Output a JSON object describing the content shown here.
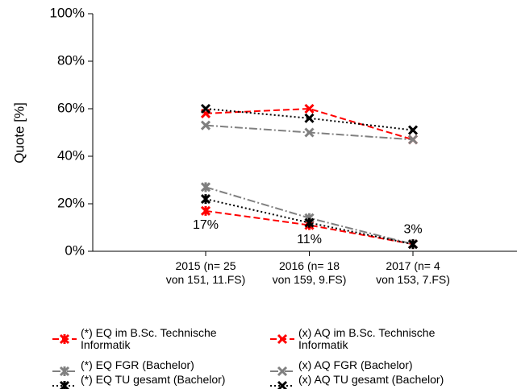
{
  "chart_data": {
    "type": "line",
    "y_label": "Quote [%]",
    "categories": [
      "2015 (n= 25\nvon 151, 11.FS)",
      "2016 (n= 18\nvon 159, 9.FS)",
      "2017 (n= 4\nvon 153, 7.FS)"
    ],
    "ylim": [
      0,
      100
    ],
    "yticks": [
      {
        "value": 0,
        "label": "0%"
      },
      {
        "value": 20,
        "label": "20%"
      },
      {
        "value": 40,
        "label": "40%"
      },
      {
        "value": 60,
        "label": "60%"
      },
      {
        "value": 80,
        "label": "80%"
      },
      {
        "value": 100,
        "label": "100%"
      }
    ],
    "series": [
      {
        "name": "(*) EQ im B.Sc. Technische Informatik",
        "color": "#ff0000",
        "linestyle": "dashed",
        "marker": "star",
        "values": [
          17,
          11,
          3
        ],
        "value_labels": [
          "17%",
          "11%",
          "3%"
        ]
      },
      {
        "name": "(x) AQ im B.Sc. Technische Informatik",
        "color": "#ff0000",
        "linestyle": "dashed",
        "marker": "cross",
        "values": [
          58,
          60,
          47
        ]
      },
      {
        "name": "(*) EQ FGR (Bachelor)",
        "color": "#808080",
        "linestyle": "dashdot",
        "marker": "star",
        "values": [
          27,
          14,
          3
        ]
      },
      {
        "name": "(x) AQ FGR (Bachelor)",
        "color": "#808080",
        "linestyle": "dashdot",
        "marker": "cross",
        "values": [
          53,
          50,
          47
        ]
      },
      {
        "name": "(*) EQ TU gesamt (Bachelor)",
        "color": "#000000",
        "linestyle": "dotted",
        "marker": "star",
        "values": [
          22,
          12,
          3
        ]
      },
      {
        "name": "(x) AQ TU gesamt (Bachelor)",
        "color": "#000000",
        "linestyle": "dotted",
        "marker": "cross",
        "values": [
          60,
          56,
          51
        ]
      }
    ]
  }
}
